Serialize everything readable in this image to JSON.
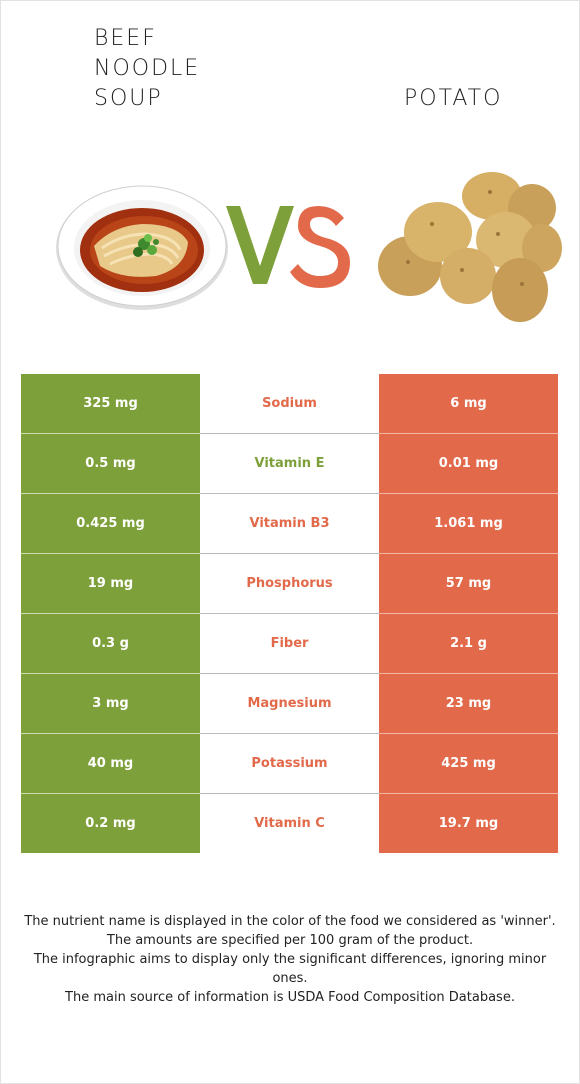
{
  "header": {
    "left_food": "Beef\nnoodle\nsoup",
    "right_food": "Potato",
    "vs_text": "VS"
  },
  "colors": {
    "left_winner": "#7ea03a",
    "right_winner": "#e26a4b",
    "table_mid": "#ffffff"
  },
  "icons": {
    "left": "noodle-soup-bowl-icon",
    "right": "potatoes-icon"
  },
  "rows": [
    {
      "left": "325 mg",
      "nutrient": "Sodium",
      "right": "6 mg",
      "winner": "right"
    },
    {
      "left": "0.5 mg",
      "nutrient": "Vitamin E",
      "right": "0.01 mg",
      "winner": "left"
    },
    {
      "left": "0.425 mg",
      "nutrient": "Vitamin B3",
      "right": "1.061 mg",
      "winner": "right"
    },
    {
      "left": "19 mg",
      "nutrient": "Phosphorus",
      "right": "57 mg",
      "winner": "right"
    },
    {
      "left": "0.3 g",
      "nutrient": "Fiber",
      "right": "2.1 g",
      "winner": "right"
    },
    {
      "left": "3 mg",
      "nutrient": "Magnesium",
      "right": "23 mg",
      "winner": "right"
    },
    {
      "left": "40 mg",
      "nutrient": "Potassium",
      "right": "425 mg",
      "winner": "right"
    },
    {
      "left": "0.2 mg",
      "nutrient": "Vitamin C",
      "right": "19.7 mg",
      "winner": "right"
    }
  ],
  "footer": {
    "line1": "The nutrient name is displayed in the color of the food we considered as 'winner'.",
    "line2": "The amounts are specified per 100 gram of the product.",
    "line3": "The infographic aims to display only the significant differences, ignoring minor ones.",
    "line4": "The main source of information is USDA Food Composition Database."
  }
}
